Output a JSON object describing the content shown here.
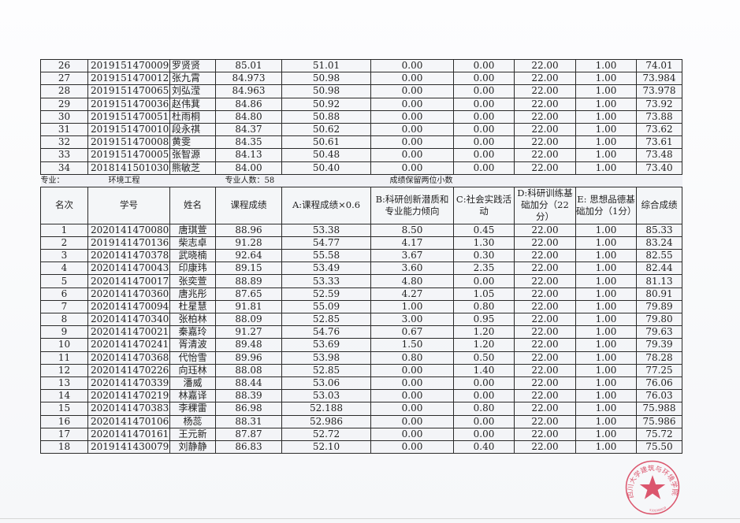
{
  "top_rows": [
    [
      "26",
      "2019151470009",
      "罗贤贤",
      "85.01",
      "51.01",
      "0.00",
      "0.00",
      "22.00",
      "1.00",
      "74.01"
    ],
    [
      "27",
      "2019151470012",
      "张九霄",
      "84.973",
      "50.98",
      "0.00",
      "0.00",
      "22.00",
      "1.00",
      "73.984"
    ],
    [
      "28",
      "2019151470065",
      "刘弘滢",
      "84.963",
      "50.98",
      "0.00",
      "0.00",
      "22.00",
      "1.00",
      "73.978"
    ],
    [
      "29",
      "2019151470036",
      "赵伟萁",
      "84.86",
      "50.92",
      "0.00",
      "0.00",
      "22.00",
      "1.00",
      "73.92"
    ],
    [
      "30",
      "2019151470051",
      "杜雨桐",
      "84.80",
      "50.88",
      "0.00",
      "0.00",
      "22.00",
      "1.00",
      "73.88"
    ],
    [
      "31",
      "2019151470010",
      "段永祺",
      "84.37",
      "50.62",
      "0.00",
      "0.00",
      "22.00",
      "1.00",
      "73.62"
    ],
    [
      "32",
      "2019151470008",
      "黄雯",
      "84.35",
      "50.61",
      "0.00",
      "0.00",
      "22.00",
      "1.00",
      "73.61"
    ],
    [
      "33",
      "2019151470005",
      "张智源",
      "84.13",
      "50.48",
      "0.00",
      "0.00",
      "22.00",
      "1.00",
      "73.48"
    ],
    [
      "34",
      "2018141501030",
      "熊敏芝",
      "84.00",
      "50.40",
      "0.00",
      "0.00",
      "22.00",
      "1.00",
      "73.40"
    ]
  ],
  "section": {
    "major_label": "专业：",
    "major": "环境工程",
    "count": "专业人数：58",
    "note": "成绩保留两位小数"
  },
  "headers": [
    "名次",
    "学号",
    "姓名",
    "课程成绩",
    "A:课程成绩×0.6",
    "B:科研创新潜质和专业能力倾向",
    "C:社会实践活动",
    "D:科研训练基础加分（22分）",
    "E: 思想品德基础加分（1分）",
    "综合成绩"
  ],
  "rows": [
    [
      "1",
      "2020141470080",
      "唐琪萱",
      "88.96",
      "53.38",
      "8.50",
      "0.45",
      "22.00",
      "1.00",
      "85.33"
    ],
    [
      "2",
      "2019141470136",
      "柴志卓",
      "91.28",
      "54.77",
      "4.17",
      "1.30",
      "22.00",
      "1.00",
      "83.24"
    ],
    [
      "3",
      "2020141470378",
      "武晓楠",
      "92.64",
      "55.58",
      "3.67",
      "0.30",
      "22.00",
      "1.00",
      "82.55"
    ],
    [
      "4",
      "2020141470043",
      "印康玮",
      "89.15",
      "53.49",
      "3.60",
      "2.35",
      "22.00",
      "1.00",
      "82.44"
    ],
    [
      "5",
      "2020141470017",
      "张奕萱",
      "88.89",
      "53.33",
      "4.80",
      "0.00",
      "22.00",
      "1.00",
      "81.13"
    ],
    [
      "6",
      "2020141470360",
      "唐兆彤",
      "87.65",
      "52.59",
      "4.27",
      "1.05",
      "22.00",
      "1.00",
      "80.91"
    ],
    [
      "7",
      "2020141470094",
      "杜星慧",
      "91.81",
      "55.09",
      "1.00",
      "0.80",
      "22.00",
      "1.00",
      "79.89"
    ],
    [
      "8",
      "2020141470340",
      "张柏林",
      "88.09",
      "52.85",
      "3.00",
      "0.95",
      "22.00",
      "1.00",
      "79.80"
    ],
    [
      "9",
      "2020141470021",
      "秦嘉玲",
      "91.27",
      "54.76",
      "0.67",
      "1.20",
      "22.00",
      "1.00",
      "79.63"
    ],
    [
      "10",
      "2020141470241",
      "胥清波",
      "89.48",
      "53.69",
      "1.50",
      "1.20",
      "22.00",
      "1.00",
      "79.39"
    ],
    [
      "11",
      "2020141470368",
      "代怡雪",
      "89.96",
      "53.98",
      "0.80",
      "0.50",
      "22.00",
      "1.00",
      "78.28"
    ],
    [
      "12",
      "2020141470226",
      "向珏林",
      "88.08",
      "52.85",
      "0.00",
      "1.40",
      "22.00",
      "1.00",
      "77.25"
    ],
    [
      "13",
      "2020141470339",
      "潘威",
      "88.44",
      "53.06",
      "0.00",
      "0.00",
      "22.00",
      "1.00",
      "76.06"
    ],
    [
      "14",
      "2020141470219",
      "林嘉译",
      "88.39",
      "53.03",
      "0.00",
      "0.00",
      "22.00",
      "1.00",
      "76.03"
    ],
    [
      "15",
      "2020141470383",
      "李稞雷",
      "86.98",
      "52.188",
      "0.00",
      "0.80",
      "22.00",
      "1.00",
      "75.988"
    ],
    [
      "16",
      "2020141470106",
      "杨蕊",
      "88.31",
      "52.986",
      "0.00",
      "0.00",
      "22.00",
      "1.00",
      "75.986"
    ],
    [
      "17",
      "2020141470161",
      "王元新",
      "87.87",
      "52.72",
      "0.00",
      "0.00",
      "22.00",
      "1.00",
      "75.72"
    ],
    [
      "18",
      "2019141430079",
      "刘静静",
      "86.83",
      "52.10",
      "0.00",
      "0.40",
      "22.00",
      "1.00",
      "75.50"
    ]
  ],
  "stamp": {
    "text": "四川大学建筑与环境学院",
    "serial": "5101000018",
    "color": "#d63a55"
  }
}
